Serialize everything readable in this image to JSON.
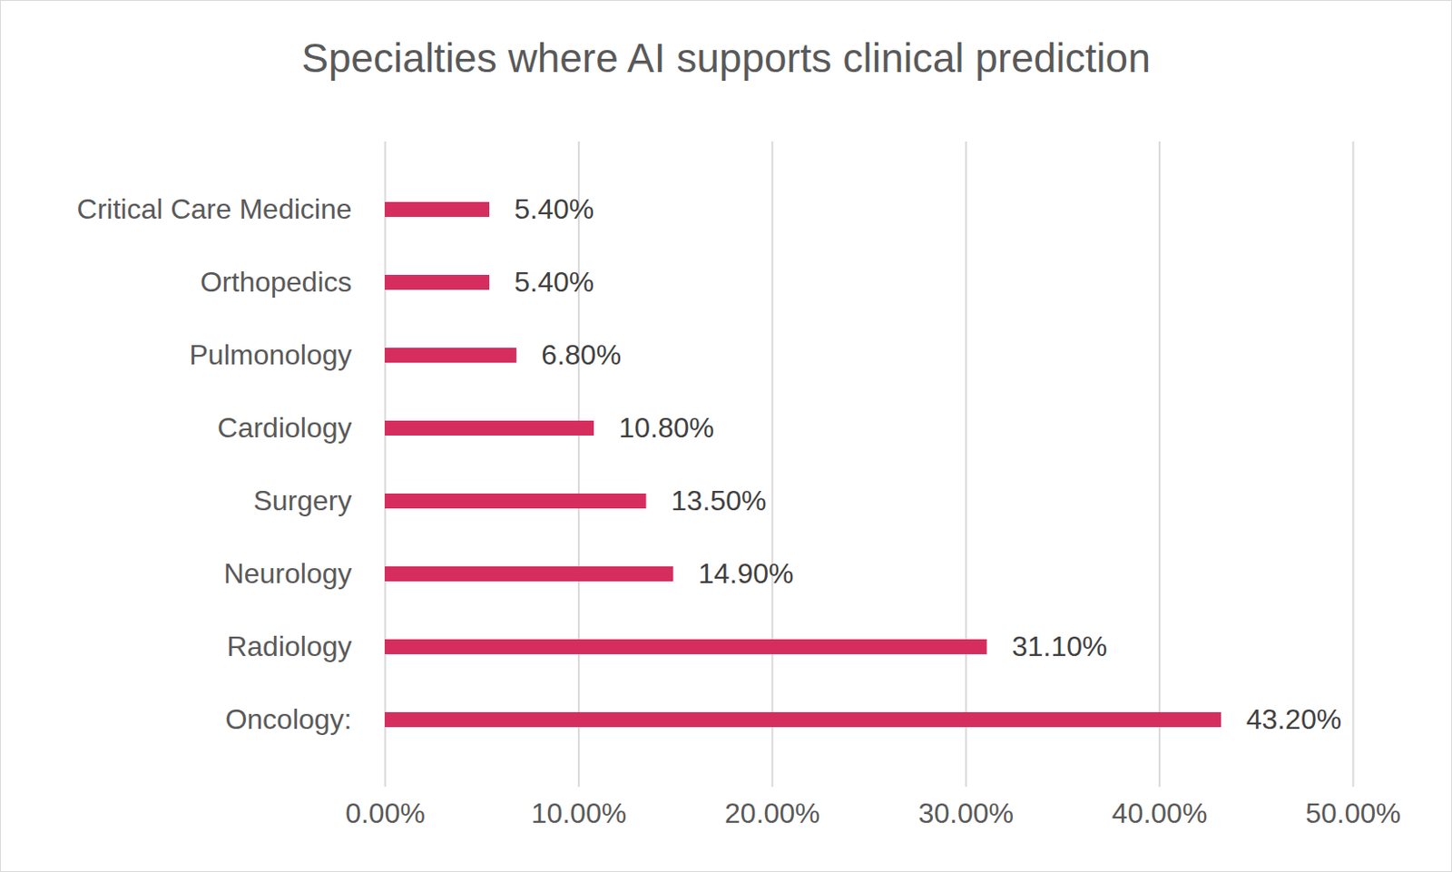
{
  "chart_data": {
    "type": "bar",
    "title": "Specialties where AI supports clinical prediction",
    "orientation": "horizontal",
    "categories": [
      "Critical Care Medicine",
      "Orthopedics",
      "Pulmonology",
      "Cardiology",
      "Surgery",
      "Neurology",
      "Radiology",
      "Oncology:"
    ],
    "values": [
      5.4,
      5.4,
      6.8,
      10.8,
      13.5,
      14.9,
      31.1,
      43.2
    ],
    "value_labels": [
      "5.40%",
      "5.40%",
      "6.80%",
      "10.80%",
      "13.50%",
      "14.90%",
      "31.10%",
      "43.20%"
    ],
    "color": "#d62d5f",
    "xlim": [
      0,
      50
    ],
    "xticks": [
      {
        "value": 0,
        "label": "0.00%"
      },
      {
        "value": 10,
        "label": "10.00%"
      },
      {
        "value": 20,
        "label": "20.00%"
      },
      {
        "value": 30,
        "label": "30.00%"
      },
      {
        "value": 40,
        "label": "40.00%"
      },
      {
        "value": 50,
        "label": "50.00%"
      }
    ],
    "grid": true,
    "data_labels": true
  }
}
